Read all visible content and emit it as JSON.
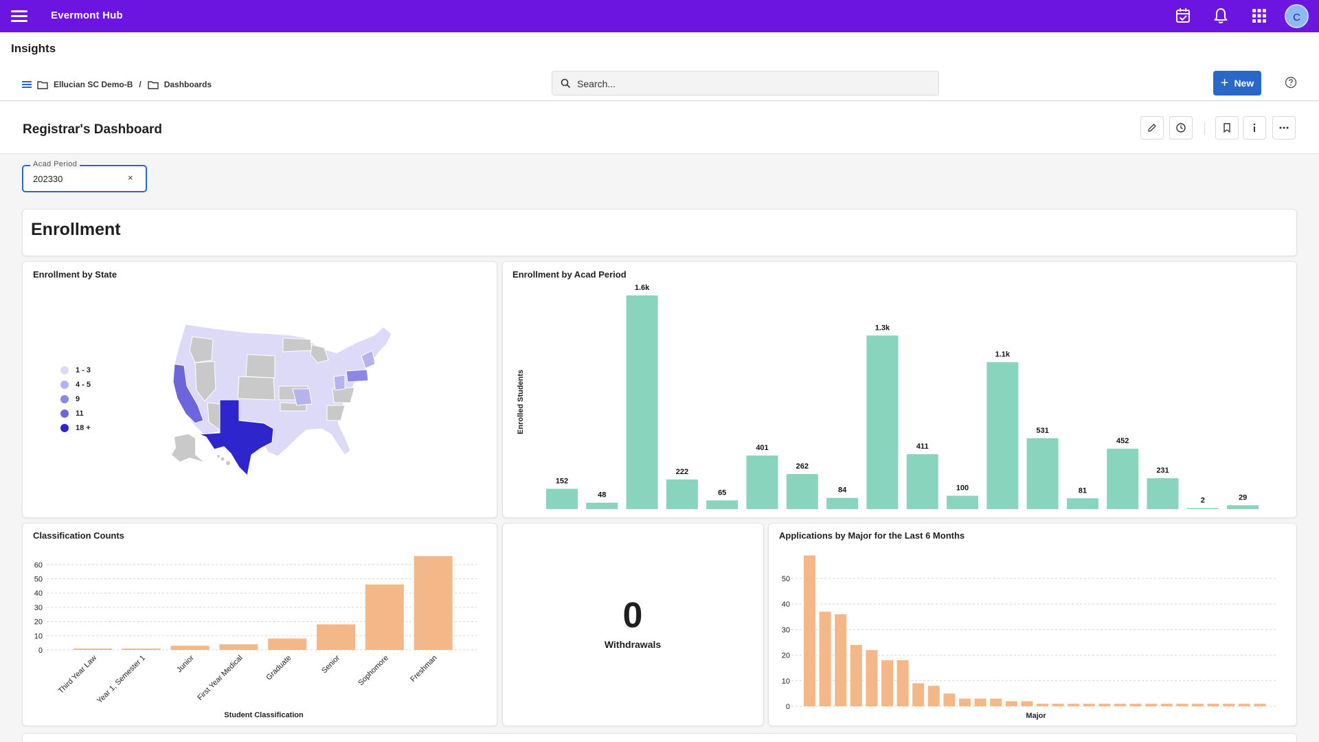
{
  "app": {
    "name": "Evermont Hub",
    "avatar_initial": "C"
  },
  "header_icons": [
    "calendar-check-icon",
    "bell-icon",
    "apps-grid-icon"
  ],
  "page": {
    "title": "Insights"
  },
  "breadcrumb": {
    "items": [
      "Ellucian SC Demo-B",
      "Dashboards"
    ],
    "separator": "/"
  },
  "search": {
    "placeholder": "Search..."
  },
  "new_button": {
    "label": "New"
  },
  "dashboard": {
    "title": "Registrar's Dashboard"
  },
  "filter": {
    "label": "Acad Period",
    "value": "202330",
    "clear": "×"
  },
  "section": {
    "title": "Enrollment"
  },
  "cards": {
    "state": {
      "title": "Enrollment by State"
    },
    "acad_period": {
      "title": "Enrollment by Acad Period",
      "ylabel": "Enrolled Students"
    },
    "classification": {
      "title": "Classification Counts",
      "xlabel": "Student Classification"
    },
    "withdrawals": {
      "value": "0",
      "label": "Withdrawals"
    },
    "applications": {
      "title": "Applications by Major for the Last 6 Months",
      "xlabel": "Major"
    }
  },
  "map_legend": [
    {
      "label": "1 - 3",
      "color": "#dcdaf6"
    },
    {
      "label": "4 - 5",
      "color": "#b6b2ef"
    },
    {
      "label": "9",
      "color": "#8c86e6"
    },
    {
      "label": "11",
      "color": "#6c66dc"
    },
    {
      "label": "18 +",
      "color": "#2f25cc"
    }
  ],
  "colors": {
    "brand": "#6c14e0",
    "teal_bar": "#88d4bd",
    "orange_bar": "#f4b888",
    "primary_button": "#2868c8"
  },
  "chart_data": [
    {
      "type": "bar",
      "title": "Enrollment by Acad Period",
      "ylabel": "Enrolled Students",
      "series": [
        {
          "values": [
            152,
            48,
            1600,
            222,
            65,
            401,
            262,
            84,
            1300,
            411,
            100,
            1100,
            531,
            81,
            452,
            231,
            2,
            29
          ]
        }
      ],
      "labels": [
        "152",
        "48",
        "1.6k",
        "222",
        "65",
        "401",
        "262",
        "84",
        "1.3k",
        "411",
        "100",
        "1.1k",
        "531",
        "81",
        "452",
        "231",
        "2",
        "29"
      ]
    },
    {
      "type": "bar",
      "title": "Classification Counts",
      "xlabel": "Student Classification",
      "categories": [
        "Third Year Law",
        "Year 1, Semester 1",
        "Junior",
        "First Year Medical",
        "Graduate",
        "Senior",
        "Sophomore",
        "Freshman"
      ],
      "values": [
        1,
        1,
        3,
        4,
        8,
        18,
        46,
        66
      ],
      "yticks": [
        0,
        10,
        20,
        30,
        40,
        50,
        60
      ],
      "ylim": [
        0,
        66
      ],
      "grid": true
    },
    {
      "type": "bar",
      "title": "Applications by Major for the Last 6 Months",
      "xlabel": "Major",
      "values": [
        59,
        37,
        36,
        24,
        22,
        18,
        18,
        9,
        8,
        5,
        3,
        3,
        3,
        2,
        2,
        1,
        1,
        1,
        1,
        1,
        1,
        1,
        1,
        1,
        1,
        1,
        1,
        1,
        1,
        1
      ],
      "yticks": [
        0,
        10,
        20,
        30,
        40,
        50
      ],
      "ylim": [
        0,
        60
      ],
      "grid": true
    }
  ]
}
